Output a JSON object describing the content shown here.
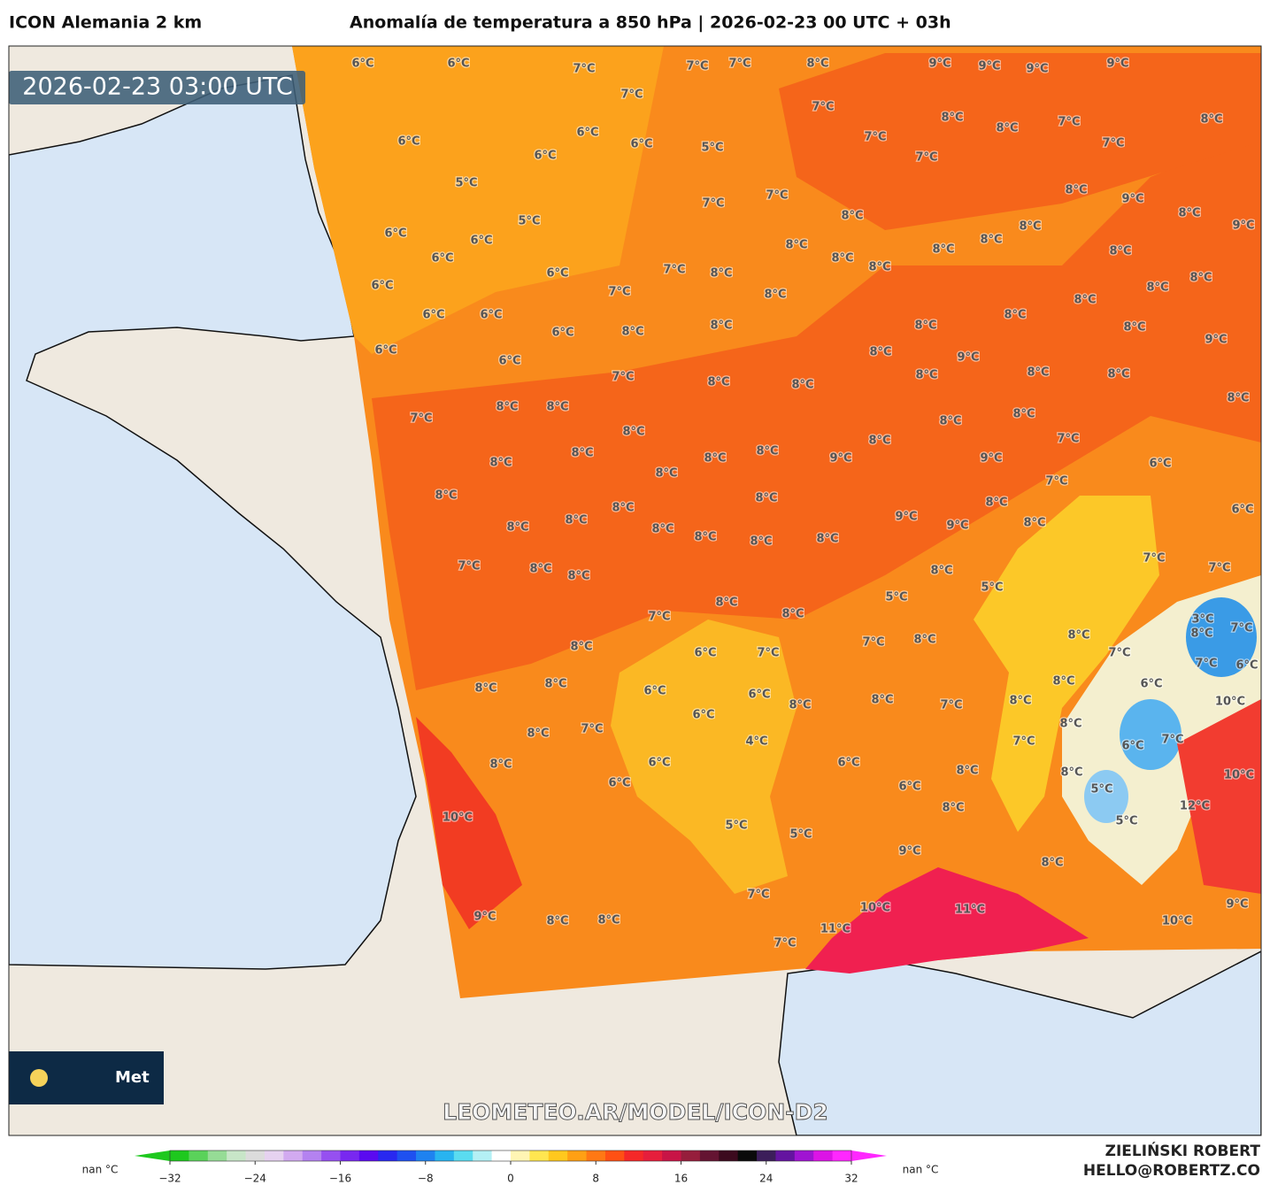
{
  "header": {
    "left": "ICON Alemania 2 km",
    "title": "Anomalía de temperatura a 850 hPa | 2026-02-23 00 UTC + 03h"
  },
  "map": {
    "timestamp": "2026-02-23 03:00 UTC",
    "watermark": "LEOMETEO.AR/MODEL/ICON-D2",
    "logo": "Met",
    "labels": [
      "6°C",
      "6°C",
      "7°C",
      "7°C",
      "7°C",
      "8°C",
      "9°C",
      "9°C",
      "9°C",
      "9°C",
      "7°C",
      "7°C",
      "8°C",
      "8°C",
      "7°C",
      "8°C",
      "6°C",
      "6°C",
      "6°C",
      "5°C",
      "7°C",
      "7°C",
      "7°C",
      "6°C",
      "5°C",
      "7°C",
      "7°C",
      "8°C",
      "9°C",
      "5°C",
      "6°C",
      "6°C",
      "8°C",
      "8°C",
      "9°C",
      "6°C",
      "8°C",
      "8°C",
      "8°C",
      "8°C",
      "8°C",
      "8°C",
      "6°C",
      "6°C",
      "7°C",
      "8°C",
      "8°C",
      "8°C",
      "8°C",
      "6°C",
      "6°C",
      "7°C",
      "8°C",
      "8°C",
      "8°C",
      "6°C",
      "8°C",
      "8°C",
      "8°C",
      "8°C",
      "9°C",
      "6°C",
      "6°C",
      "8°C",
      "9°C",
      "7°C",
      "8°C",
      "8°C",
      "8°C",
      "8°C",
      "8°C",
      "7°C",
      "8°C",
      "8°C",
      "8°C",
      "8°C",
      "8°C",
      "8°C",
      "8°C",
      "8°C",
      "8°C",
      "8°C",
      "9°C",
      "8°C",
      "8°C",
      "7°C",
      "9°C",
      "6°C",
      "8°C",
      "8°C",
      "8°C",
      "7°C",
      "8°C",
      "6°C",
      "8°C",
      "8°C",
      "8°C",
      "8°C",
      "8°C",
      "8°C",
      "9°C",
      "9°C",
      "8°C",
      "7°C",
      "8°C",
      "8°C",
      "8°C",
      "5°C",
      "7°C",
      "7°C",
      "7°C",
      "8°C",
      "8°C",
      "5°C",
      "3°C",
      "8°C",
      "8°C",
      "7°C",
      "8°C",
      "6°C",
      "7°C",
      "7°C",
      "8°C",
      "7°C",
      "7°C",
      "6°C",
      "8°C",
      "8°C",
      "6°C",
      "6°C",
      "8°C",
      "8°C",
      "7°C",
      "8°C",
      "8°C",
      "6°C",
      "10°C",
      "8°C",
      "7°C",
      "6°C",
      "4°C",
      "7°C",
      "8°C",
      "6°C",
      "7°C",
      "8°C",
      "6°C",
      "6°C",
      "8°C",
      "8°C",
      "10°C",
      "6°C",
      "6°C",
      "5°C",
      "8°C",
      "10°C",
      "5°C",
      "5°C",
      "5°C",
      "12°C",
      "9°C",
      "8°C",
      "7°C",
      "10°C",
      "11°C",
      "9°C",
      "9°C",
      "8°C",
      "8°C",
      "11°C",
      "10°C",
      "7°C"
    ]
  },
  "colorbar": {
    "left_unit": "nan °C",
    "right_unit": "nan °C",
    "lim": [
      -32,
      32
    ],
    "colors": [
      "#1ec81e",
      "#5ad25a",
      "#96dc96",
      "#c8e6c8",
      "#dcdcdc",
      "#e6d2f0",
      "#d2aaf0",
      "#b482f0",
      "#9650f0",
      "#7828f0",
      "#5a0af0",
      "#2828f0",
      "#1e50f0",
      "#1e82f0",
      "#28b4f0",
      "#5adcf0",
      "#b4f0f5",
      "#ffffff",
      "#fff5b4",
      "#ffe650",
      "#ffc81e",
      "#ffa014",
      "#ff7814",
      "#ff5014",
      "#f52828",
      "#e61e3c",
      "#c81446",
      "#961e3c",
      "#641432",
      "#3c0a1e",
      "#0a0a0a",
      "#3c1e5a",
      "#6414a0",
      "#a014d2",
      "#dc14e6",
      "#ff28ff"
    ],
    "ticks": [
      {
        "value": -32,
        "label": "−32"
      },
      {
        "value": -24,
        "label": "−24"
      },
      {
        "value": -16,
        "label": "−16"
      },
      {
        "value": -8,
        "label": "−8"
      },
      0,
      8,
      16,
      24,
      32
    ]
  },
  "footer": {
    "author": "ZIELIŃSKI ROBERT",
    "email": "HELLO@ROBERTZ.CO"
  }
}
